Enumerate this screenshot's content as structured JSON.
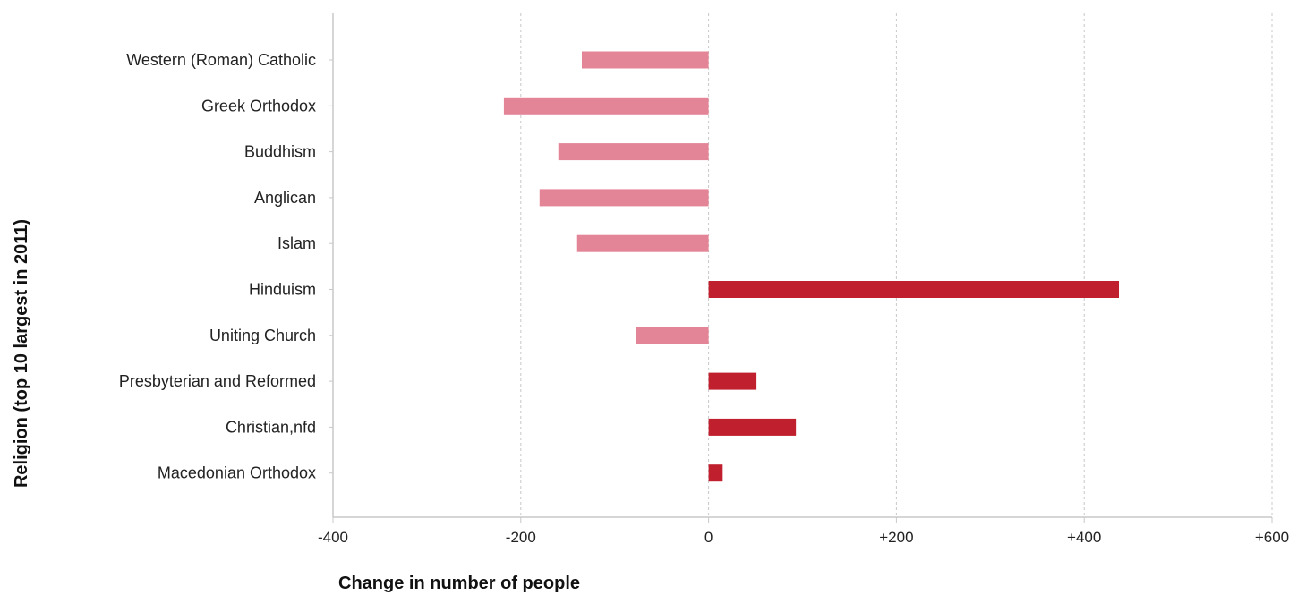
{
  "chart_data": {
    "type": "bar",
    "orientation": "horizontal",
    "title": "",
    "xlabel": "Change in number of people",
    "ylabel": "Religion (top 10 largest in 2011)",
    "categories": [
      "Western (Roman) Catholic",
      "Greek Orthodox",
      "Buddhism",
      "Anglican",
      "Islam",
      "Hinduism",
      "Uniting Church",
      "Presbyterian and Reformed",
      "Christian,nfd",
      "Macedonian Orthodox"
    ],
    "values": [
      -135,
      -218,
      -160,
      -180,
      -140,
      437,
      -77,
      51,
      93,
      15
    ],
    "xlim": [
      -400,
      600
    ],
    "xticks": [
      -400,
      -200,
      0,
      200,
      400,
      600
    ],
    "xtick_labels": [
      "-400",
      "-200",
      "0",
      "+200",
      "+400",
      "+600"
    ],
    "grid": "vertical dashed",
    "legend": "none",
    "colors": {
      "increase": "#c0202e",
      "decrease": "#e48597",
      "grid": "#c8c8c8",
      "axis": "#c8c8c8",
      "text": "#222222"
    }
  }
}
